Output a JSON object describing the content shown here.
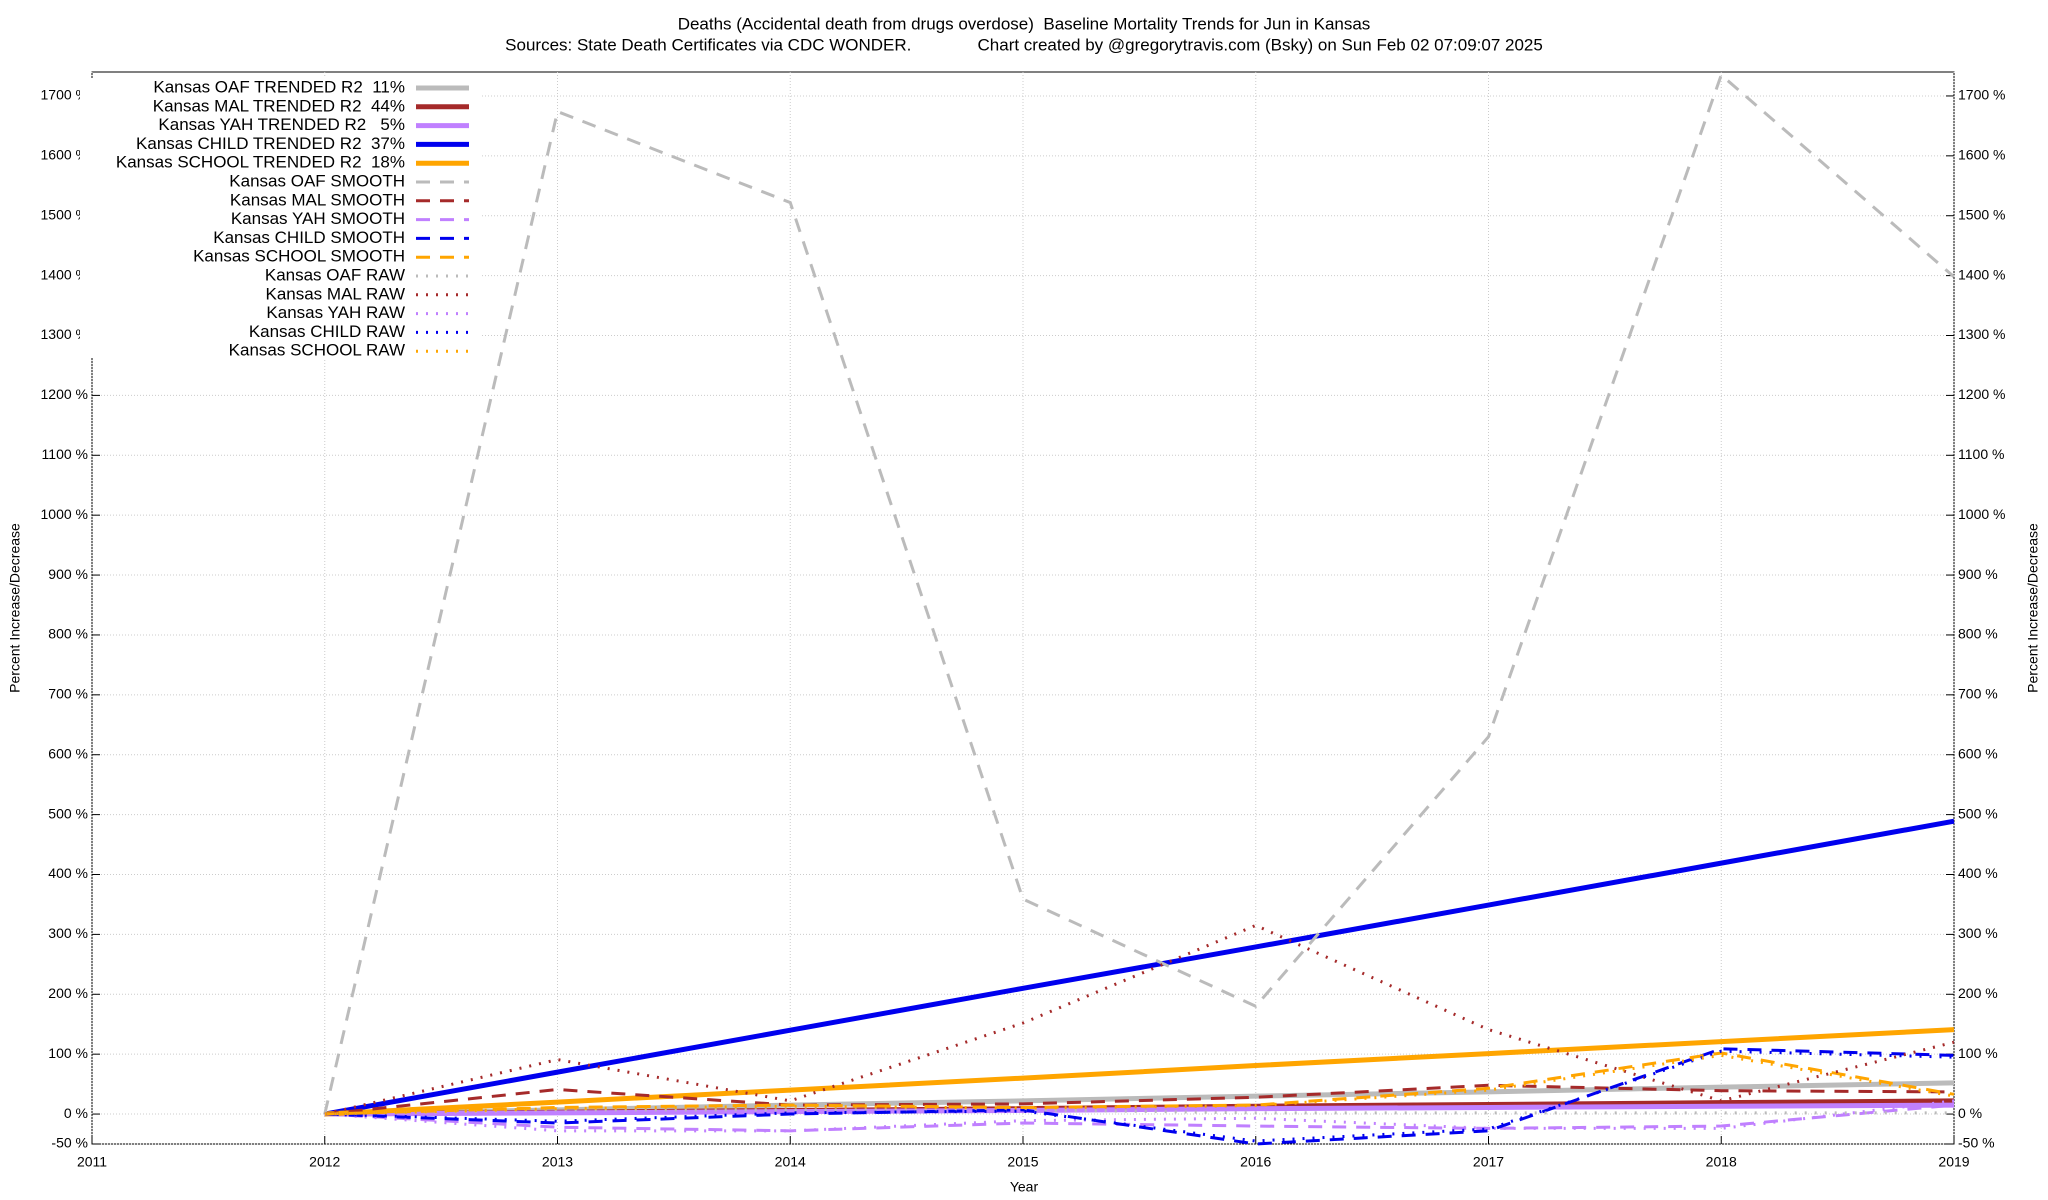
{
  "chart_data": {
    "type": "line",
    "title": "Deaths (Accidental death from drugs overdose)  Baseline Mortality Trends for Jun in Kansas",
    "subtitle": "Sources: State Death Certificates via CDC WONDER.              Chart created by @gregorytravis.com (Bsky) on Sun Feb 02 07:09:07 2025",
    "x_label": "Year",
    "y_label": "Percent Increase/Decrease",
    "y2_label": "Percent Increase/Decrease",
    "x": [
      2012,
      2013,
      2014,
      2015,
      2016,
      2017,
      2018,
      2019
    ],
    "xlim": [
      2011,
      2019
    ],
    "xticks": [
      2011,
      2012,
      2013,
      2014,
      2015,
      2016,
      2017,
      2018,
      2019
    ],
    "ylim": [
      -50,
      1740
    ],
    "yticks": [
      {
        "value": -50,
        "label": "-50 %"
      },
      {
        "value": 0,
        "label": "0 %"
      },
      {
        "value": 100,
        "label": "100 %"
      },
      {
        "value": 200,
        "label": "200 %"
      },
      {
        "value": 300,
        "label": "300 %"
      },
      {
        "value": 400,
        "label": "400 %"
      },
      {
        "value": 500,
        "label": "500 %"
      },
      {
        "value": 600,
        "label": "600 %"
      },
      {
        "value": 700,
        "label": "700 %"
      },
      {
        "value": 800,
        "label": "800 %"
      },
      {
        "value": 900,
        "label": "900 %"
      },
      {
        "value": 1000,
        "label": "1000 %"
      },
      {
        "value": 1100,
        "label": "1100 %"
      },
      {
        "value": 1200,
        "label": "1200 %"
      },
      {
        "value": 1300,
        "label": "1300 %"
      },
      {
        "value": 1400,
        "label": "1400 %"
      },
      {
        "value": 1500,
        "label": "1500 %"
      },
      {
        "value": 1600,
        "label": "1600 %"
      },
      {
        "value": 1700,
        "label": "1700 %"
      }
    ],
    "grid": true,
    "legend": "top-left",
    "series": [
      {
        "name": "Kansas OAF TRENDED R2  11%",
        "color": "#bbbbbb",
        "style": "solid",
        "values": [
          0,
          7,
          15,
          22,
          30,
          37,
          45,
          52
        ]
      },
      {
        "name": "Kansas MAL TRENDED R2  44%",
        "color": "#a52a2a",
        "style": "solid",
        "values": [
          0,
          3,
          6,
          9,
          13,
          16,
          19,
          22
        ]
      },
      {
        "name": "Kansas YAH TRENDED R2   5%",
        "color": "#c080ff",
        "style": "solid",
        "values": [
          0,
          2,
          4,
          6,
          9,
          11,
          13,
          15
        ]
      },
      {
        "name": "Kansas CHILD TRENDED R2  37%",
        "color": "#0000ee",
        "style": "solid",
        "values": [
          0,
          70,
          140,
          210,
          279,
          349,
          419,
          489
        ]
      },
      {
        "name": "Kansas SCHOOL TRENDED R2  18%",
        "color": "#ffa500",
        "style": "solid",
        "values": [
          0,
          20,
          40,
          60,
          81,
          101,
          121,
          141
        ]
      },
      {
        "name": "Kansas OAF SMOOTH",
        "color": "#bbbbbb",
        "style": "dashed",
        "values": [
          0,
          1674,
          1522,
          359,
          180,
          630,
          1735,
          1398
        ]
      },
      {
        "name": "Kansas MAL SMOOTH",
        "color": "#a52a2a",
        "style": "dashed",
        "values": [
          0,
          41,
          15,
          17,
          28,
          48,
          39,
          37
        ]
      },
      {
        "name": "Kansas YAH SMOOTH",
        "color": "#c080ff",
        "style": "dashed",
        "values": [
          0,
          -22,
          -28,
          -15,
          -20,
          -24,
          -20,
          15
        ]
      },
      {
        "name": "Kansas CHILD SMOOTH",
        "color": "#0000ee",
        "style": "dashed",
        "values": [
          0,
          -15,
          0,
          7,
          -50,
          -28,
          109,
          98
        ]
      },
      {
        "name": "Kansas SCHOOL SMOOTH",
        "color": "#ffa500",
        "style": "dashed",
        "values": [
          0,
          11,
          15,
          11,
          15,
          43,
          102,
          33
        ]
      },
      {
        "name": "Kansas OAF RAW",
        "color": "#bbbbbb",
        "style": "dotted",
        "values": [
          0,
          7,
          7,
          7,
          2,
          2,
          2,
          2
        ]
      },
      {
        "name": "Kansas MAL RAW",
        "color": "#a52a2a",
        "style": "dotted",
        "values": [
          0,
          91,
          22,
          152,
          315,
          141,
          22,
          120
        ]
      },
      {
        "name": "Kansas YAH RAW",
        "color": "#c080ff",
        "style": "dotted",
        "values": [
          0,
          -28,
          -28,
          -11,
          -7,
          -24,
          -24,
          22
        ]
      },
      {
        "name": "Kansas CHILD RAW",
        "color": "#0000ee",
        "style": "dotted",
        "values": [
          0,
          -12,
          2,
          5,
          -45,
          -25,
          105,
          95
        ]
      },
      {
        "name": "Kansas SCHOOL RAW",
        "color": "#ffa500",
        "style": "dotted",
        "values": [
          0,
          9,
          13,
          10,
          14,
          40,
          98,
          30
        ]
      }
    ]
  }
}
